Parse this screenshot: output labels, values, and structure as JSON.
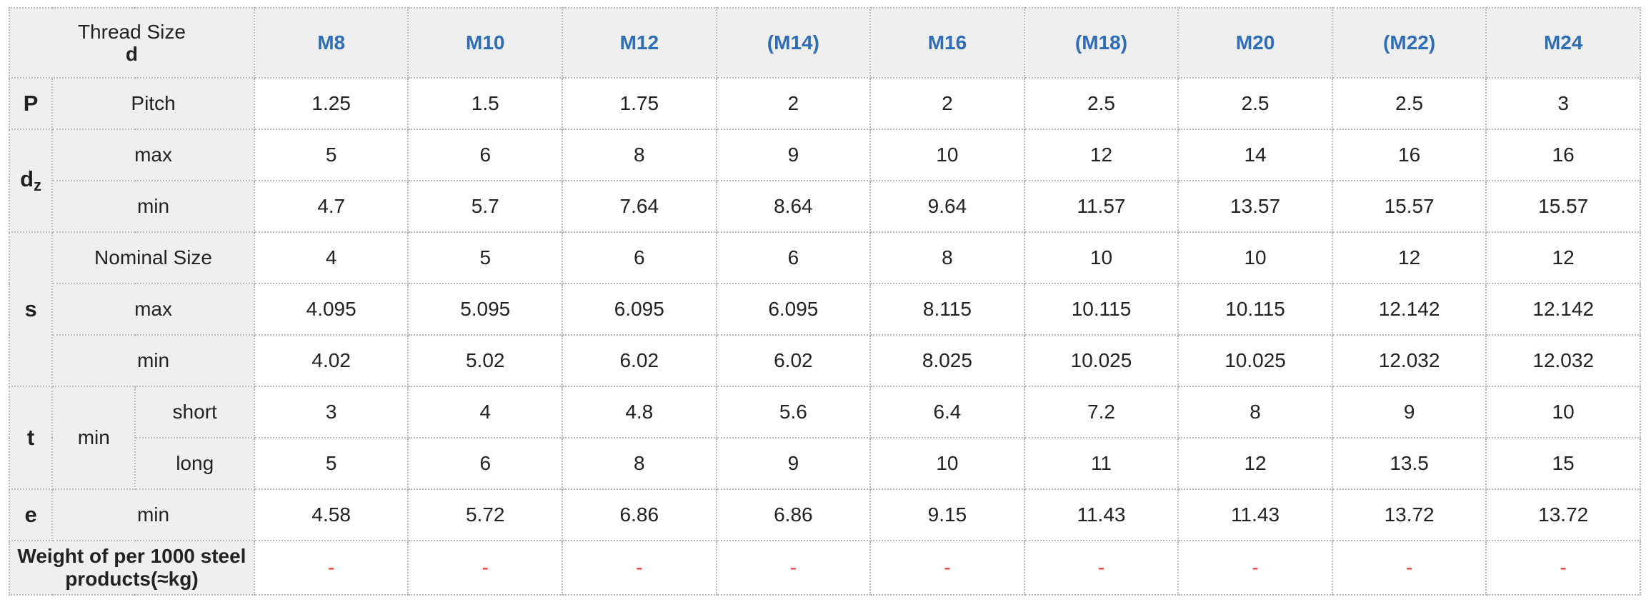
{
  "header": {
    "title": "Thread Size",
    "subtitle": "d",
    "sizes": [
      "M8",
      "M10",
      "M12",
      "(M14)",
      "M16",
      "(M18)",
      "M20",
      "(M22)",
      "M24"
    ]
  },
  "colors": {
    "size_label": "#2f6db5",
    "dash": "#e0362c",
    "header_bg": "#efefef",
    "border": "#b8b8b8"
  },
  "pitch": {
    "symbol": "P",
    "label": "Pitch",
    "values": [
      "1.25",
      "1.5",
      "1.75",
      "2",
      "2",
      "2.5",
      "2.5",
      "2.5",
      "3"
    ]
  },
  "dz": {
    "symbol_main": "d",
    "symbol_sub": "z",
    "max": {
      "label": "max",
      "values": [
        "5",
        "6",
        "8",
        "9",
        "10",
        "12",
        "14",
        "16",
        "16"
      ]
    },
    "min": {
      "label": "min",
      "values": [
        "4.7",
        "5.7",
        "7.64",
        "8.64",
        "9.64",
        "11.57",
        "13.57",
        "15.57",
        "15.57"
      ]
    }
  },
  "s": {
    "symbol": "s",
    "nominal": {
      "label": "Nominal Size",
      "values": [
        "4",
        "5",
        "6",
        "6",
        "8",
        "10",
        "10",
        "12",
        "12"
      ]
    },
    "max": {
      "label": "max",
      "values": [
        "4.095",
        "5.095",
        "6.095",
        "6.095",
        "8.115",
        "10.115",
        "10.115",
        "12.142",
        "12.142"
      ]
    },
    "min": {
      "label": "min",
      "values": [
        "4.02",
        "5.02",
        "6.02",
        "6.02",
        "8.025",
        "10.025",
        "10.025",
        "12.032",
        "12.032"
      ]
    }
  },
  "t": {
    "symbol": "t",
    "group_label": "min",
    "short": {
      "label": "short",
      "values": [
        "3",
        "4",
        "4.8",
        "5.6",
        "6.4",
        "7.2",
        "8",
        "9",
        "10"
      ]
    },
    "long": {
      "label": "long",
      "values": [
        "5",
        "6",
        "8",
        "9",
        "10",
        "11",
        "12",
        "13.5",
        "15"
      ]
    }
  },
  "e": {
    "symbol": "e",
    "label": "min",
    "values": [
      "4.58",
      "5.72",
      "6.86",
      "6.86",
      "9.15",
      "11.43",
      "11.43",
      "13.72",
      "13.72"
    ]
  },
  "weight": {
    "label": "Weight of per 1000 steel products(≈kg)",
    "values": [
      "-",
      "-",
      "-",
      "-",
      "-",
      "-",
      "-",
      "-",
      "-"
    ]
  }
}
